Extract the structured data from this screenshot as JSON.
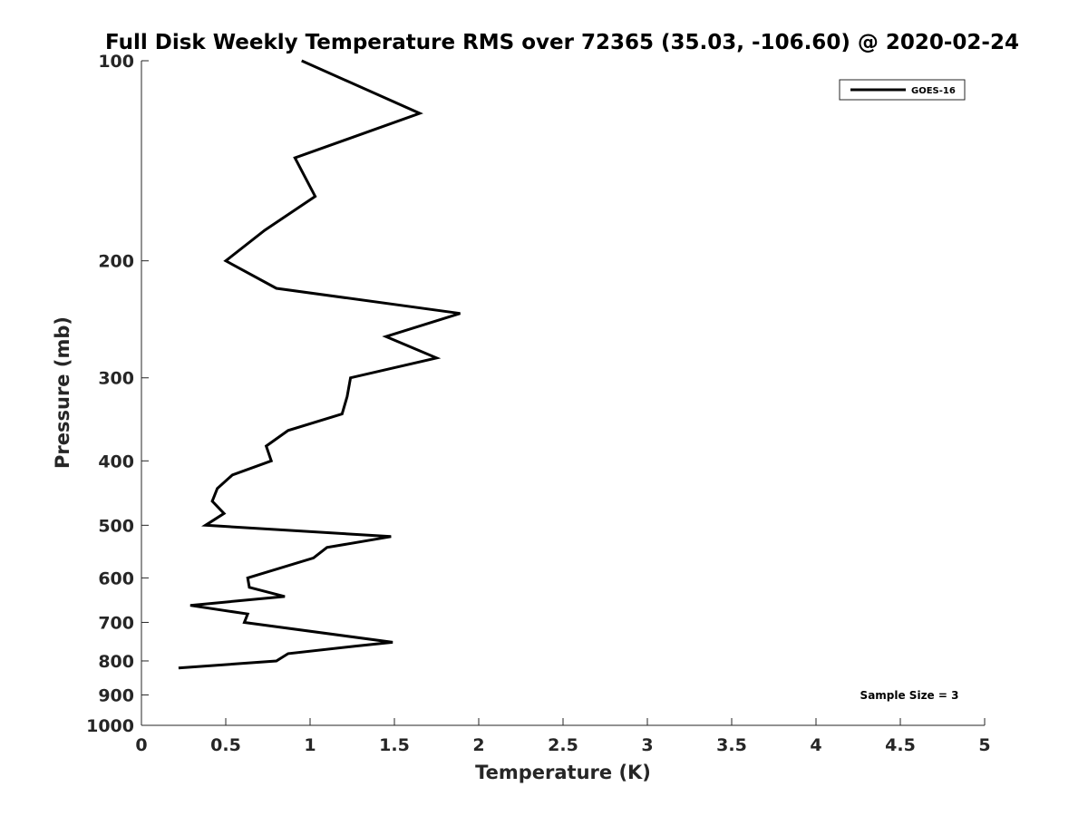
{
  "chart_data": {
    "type": "line",
    "title": "Full Disk Weekly Temperature RMS over 72365 (35.03, -106.60) @ 2020-02-24",
    "xlabel": "Temperature (K)",
    "ylabel": "Pressure (mb)",
    "xlim": [
      0,
      5
    ],
    "ylim": [
      100,
      1000
    ],
    "y_scale": "log",
    "y_reversed": true,
    "x_ticks": [
      "0",
      "0.5",
      "1",
      "1.5",
      "2",
      "2.5",
      "3",
      "3.5",
      "4",
      "4.5",
      "5"
    ],
    "y_ticks": [
      "100",
      "200",
      "300",
      "400",
      "500",
      "600",
      "700",
      "800",
      "900",
      "1000"
    ],
    "legend_position": "top-right",
    "grid": false,
    "annotation": "Sample Size = 3",
    "series": [
      {
        "name": "GOES-16",
        "color": "#000000",
        "points": [
          {
            "x": 0.95,
            "y": 100
          },
          {
            "x": 1.65,
            "y": 120
          },
          {
            "x": 0.91,
            "y": 140
          },
          {
            "x": 1.03,
            "y": 160
          },
          {
            "x": 0.73,
            "y": 180
          },
          {
            "x": 0.5,
            "y": 200
          },
          {
            "x": 0.8,
            "y": 220
          },
          {
            "x": 1.89,
            "y": 240
          },
          {
            "x": 1.45,
            "y": 260
          },
          {
            "x": 1.75,
            "y": 280
          },
          {
            "x": 1.24,
            "y": 300
          },
          {
            "x": 1.22,
            "y": 320
          },
          {
            "x": 1.19,
            "y": 340
          },
          {
            "x": 0.87,
            "y": 360
          },
          {
            "x": 0.74,
            "y": 380
          },
          {
            "x": 0.77,
            "y": 400
          },
          {
            "x": 0.54,
            "y": 420
          },
          {
            "x": 0.45,
            "y": 440
          },
          {
            "x": 0.42,
            "y": 460
          },
          {
            "x": 0.49,
            "y": 480
          },
          {
            "x": 0.38,
            "y": 500
          },
          {
            "x": 1.48,
            "y": 520
          },
          {
            "x": 1.1,
            "y": 540
          },
          {
            "x": 1.02,
            "y": 560
          },
          {
            "x": 0.63,
            "y": 600
          },
          {
            "x": 0.64,
            "y": 620
          },
          {
            "x": 0.85,
            "y": 640
          },
          {
            "x": 0.29,
            "y": 660
          },
          {
            "x": 0.63,
            "y": 680
          },
          {
            "x": 0.61,
            "y": 700
          },
          {
            "x": 1.49,
            "y": 750
          },
          {
            "x": 1.27,
            "y": 760
          },
          {
            "x": 0.87,
            "y": 780
          },
          {
            "x": 0.8,
            "y": 800
          },
          {
            "x": 0.22,
            "y": 820
          }
        ]
      }
    ]
  }
}
